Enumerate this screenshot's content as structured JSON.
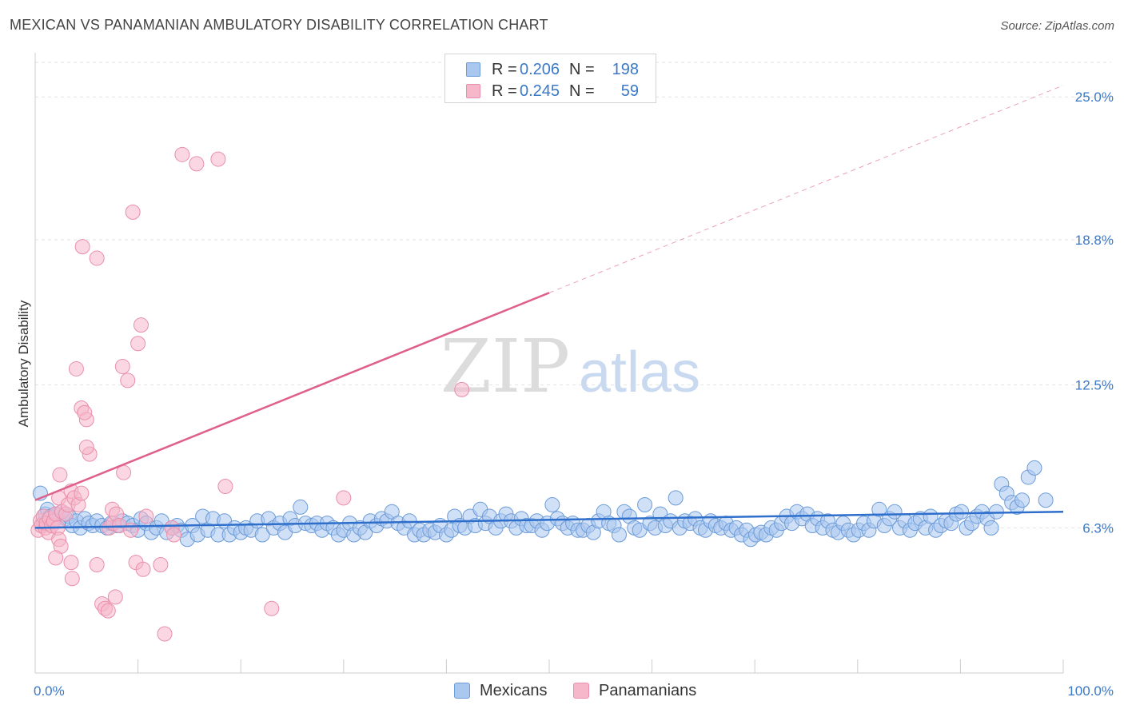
{
  "header": {
    "title": "MEXICAN VS PANAMANIAN AMBULATORY DISABILITY CORRELATION CHART",
    "source": "Source: ZipAtlas.com"
  },
  "watermark": {
    "part1": "ZIP",
    "part2": "atlas"
  },
  "legend": {
    "rows": [
      {
        "r_label": "R =",
        "r_value": "0.206",
        "n_label": "N =",
        "n_value": "198"
      },
      {
        "r_label": "R =",
        "r_value": "0.245",
        "n_label": "N =",
        "n_value": "59"
      }
    ]
  },
  "bottom_legend": {
    "mexicans": "Mexicans",
    "panamanians": "Panamanians"
  },
  "colors": {
    "mexican_fill": "#a9c7ef",
    "mexican_stroke": "#6b9bd8",
    "mexican_line": "#2f6fcc",
    "panamanian_fill": "#f6b7ca",
    "panamanian_stroke": "#e98fab",
    "panamanian_line": "#e0608c",
    "tick_label": "#3a78c8",
    "grid": "#e2e2e2"
  },
  "chart_data": {
    "type": "scatter",
    "title": "MEXICAN VS PANAMANIAN AMBULATORY DISABILITY CORRELATION CHART",
    "xlabel": "",
    "ylabel": "Ambulatory Disability",
    "xlim": [
      0,
      100
    ],
    "ylim": [
      0,
      26.5
    ],
    "x_tick_labels": [
      {
        "value": 0,
        "label": "0.0%"
      },
      {
        "value": 100,
        "label": "100.0%"
      }
    ],
    "x_minor_ticks": [
      0,
      10,
      20,
      30,
      40,
      50,
      60,
      70,
      80,
      90,
      100
    ],
    "y_ticks": [
      {
        "value": 6.3,
        "label": "6.3%"
      },
      {
        "value": 12.5,
        "label": "12.5%"
      },
      {
        "value": 18.8,
        "label": "18.8%"
      },
      {
        "value": 25.0,
        "label": "25.0%"
      }
    ],
    "grid": true,
    "legend_position": "top-center",
    "series": [
      {
        "name": "Mexicans",
        "R": 0.206,
        "N": 198,
        "trend": {
          "x": [
            0,
            100
          ],
          "y": [
            6.3,
            7.0
          ]
        },
        "points": [
          [
            0.5,
            7.8
          ],
          [
            0.8,
            6.5
          ],
          [
            1.0,
            6.9
          ],
          [
            1.2,
            7.1
          ],
          [
            1.5,
            6.8
          ],
          [
            1.8,
            6.6
          ],
          [
            2.0,
            6.9
          ],
          [
            2.3,
            6.6
          ],
          [
            2.6,
            7.0
          ],
          [
            3.0,
            6.7
          ],
          [
            3.3,
            6.8
          ],
          [
            3.6,
            6.4
          ],
          [
            4.0,
            6.6
          ],
          [
            4.4,
            6.3
          ],
          [
            4.8,
            6.7
          ],
          [
            5.2,
            6.5
          ],
          [
            5.6,
            6.4
          ],
          [
            6.0,
            6.6
          ],
          [
            6.5,
            6.4
          ],
          [
            7.0,
            6.3
          ],
          [
            7.4,
            6.5
          ],
          [
            8.0,
            6.4
          ],
          [
            8.5,
            6.6
          ],
          [
            9.0,
            6.5
          ],
          [
            9.5,
            6.4
          ],
          [
            10.0,
            6.2
          ],
          [
            10.3,
            6.7
          ],
          [
            10.8,
            6.5
          ],
          [
            11.3,
            6.1
          ],
          [
            11.8,
            6.3
          ],
          [
            12.3,
            6.6
          ],
          [
            12.8,
            6.1
          ],
          [
            13.3,
            6.3
          ],
          [
            13.8,
            6.4
          ],
          [
            14.2,
            6.2
          ],
          [
            14.8,
            5.8
          ],
          [
            15.3,
            6.4
          ],
          [
            15.8,
            6.0
          ],
          [
            16.3,
            6.8
          ],
          [
            16.8,
            6.2
          ],
          [
            17.3,
            6.7
          ],
          [
            17.8,
            6.0
          ],
          [
            18.4,
            6.6
          ],
          [
            18.9,
            6.0
          ],
          [
            19.4,
            6.3
          ],
          [
            20.0,
            6.1
          ],
          [
            20.5,
            6.3
          ],
          [
            21.0,
            6.2
          ],
          [
            21.6,
            6.6
          ],
          [
            22.1,
            6.0
          ],
          [
            22.7,
            6.7
          ],
          [
            23.2,
            6.3
          ],
          [
            23.8,
            6.5
          ],
          [
            24.3,
            6.1
          ],
          [
            24.8,
            6.7
          ],
          [
            25.3,
            6.4
          ],
          [
            25.8,
            7.2
          ],
          [
            26.3,
            6.5
          ],
          [
            26.9,
            6.4
          ],
          [
            27.4,
            6.5
          ],
          [
            27.9,
            6.2
          ],
          [
            28.4,
            6.5
          ],
          [
            29.0,
            6.3
          ],
          [
            29.5,
            6.0
          ],
          [
            30.0,
            6.2
          ],
          [
            30.6,
            6.5
          ],
          [
            31.0,
            6.0
          ],
          [
            31.6,
            6.3
          ],
          [
            32.1,
            6.1
          ],
          [
            32.6,
            6.6
          ],
          [
            33.2,
            6.4
          ],
          [
            33.7,
            6.7
          ],
          [
            34.2,
            6.6
          ],
          [
            34.7,
            7.0
          ],
          [
            35.3,
            6.5
          ],
          [
            35.9,
            6.3
          ],
          [
            36.4,
            6.6
          ],
          [
            36.9,
            6.0
          ],
          [
            37.4,
            6.2
          ],
          [
            37.8,
            6.0
          ],
          [
            38.4,
            6.2
          ],
          [
            38.9,
            6.1
          ],
          [
            39.4,
            6.4
          ],
          [
            40.0,
            6.0
          ],
          [
            40.5,
            6.2
          ],
          [
            40.8,
            6.8
          ],
          [
            41.3,
            6.4
          ],
          [
            41.8,
            6.3
          ],
          [
            42.3,
            6.8
          ],
          [
            42.8,
            6.4
          ],
          [
            43.3,
            7.1
          ],
          [
            43.8,
            6.5
          ],
          [
            44.2,
            6.8
          ],
          [
            44.8,
            6.3
          ],
          [
            45.3,
            6.6
          ],
          [
            45.8,
            6.9
          ],
          [
            46.3,
            6.6
          ],
          [
            46.8,
            6.3
          ],
          [
            47.3,
            6.7
          ],
          [
            47.8,
            6.4
          ],
          [
            48.3,
            6.4
          ],
          [
            48.8,
            6.6
          ],
          [
            49.3,
            6.2
          ],
          [
            49.8,
            6.5
          ],
          [
            50.3,
            7.3
          ],
          [
            50.8,
            6.7
          ],
          [
            51.3,
            6.5
          ],
          [
            51.8,
            6.3
          ],
          [
            52.3,
            6.5
          ],
          [
            52.8,
            6.2
          ],
          [
            53.3,
            6.2
          ],
          [
            53.8,
            6.4
          ],
          [
            54.3,
            6.1
          ],
          [
            54.8,
            6.6
          ],
          [
            55.3,
            7.0
          ],
          [
            55.8,
            6.5
          ],
          [
            56.3,
            6.4
          ],
          [
            56.8,
            6.0
          ],
          [
            57.3,
            7.0
          ],
          [
            57.8,
            6.8
          ],
          [
            58.3,
            6.3
          ],
          [
            58.8,
            6.2
          ],
          [
            59.3,
            7.3
          ],
          [
            59.8,
            6.5
          ],
          [
            60.3,
            6.3
          ],
          [
            60.8,
            6.9
          ],
          [
            61.3,
            6.4
          ],
          [
            61.8,
            6.6
          ],
          [
            62.3,
            7.6
          ],
          [
            62.7,
            6.3
          ],
          [
            63.2,
            6.6
          ],
          [
            63.7,
            6.5
          ],
          [
            64.2,
            6.7
          ],
          [
            64.7,
            6.3
          ],
          [
            65.2,
            6.2
          ],
          [
            65.7,
            6.6
          ],
          [
            66.2,
            6.4
          ],
          [
            66.7,
            6.3
          ],
          [
            67.2,
            6.5
          ],
          [
            67.7,
            6.2
          ],
          [
            68.2,
            6.3
          ],
          [
            68.7,
            6.0
          ],
          [
            69.2,
            6.2
          ],
          [
            69.6,
            5.8
          ],
          [
            70.1,
            6.0
          ],
          [
            70.6,
            6.1
          ],
          [
            71.1,
            6.0
          ],
          [
            71.6,
            6.3
          ],
          [
            72.1,
            6.2
          ],
          [
            72.6,
            6.5
          ],
          [
            73.1,
            6.8
          ],
          [
            73.6,
            6.5
          ],
          [
            74.1,
            7.0
          ],
          [
            74.6,
            6.7
          ],
          [
            75.1,
            6.9
          ],
          [
            75.6,
            6.4
          ],
          [
            76.1,
            6.7
          ],
          [
            76.6,
            6.3
          ],
          [
            77.1,
            6.6
          ],
          [
            77.6,
            6.2
          ],
          [
            78.1,
            6.1
          ],
          [
            78.6,
            6.5
          ],
          [
            79.1,
            6.2
          ],
          [
            79.6,
            6.0
          ],
          [
            80.1,
            6.2
          ],
          [
            80.6,
            6.5
          ],
          [
            81.1,
            6.2
          ],
          [
            81.6,
            6.6
          ],
          [
            82.1,
            7.1
          ],
          [
            82.6,
            6.4
          ],
          [
            83.1,
            6.7
          ],
          [
            83.6,
            7.0
          ],
          [
            84.1,
            6.3
          ],
          [
            84.6,
            6.6
          ],
          [
            85.1,
            6.2
          ],
          [
            85.6,
            6.5
          ],
          [
            86.1,
            6.7
          ],
          [
            86.6,
            6.3
          ],
          [
            87.1,
            6.8
          ],
          [
            87.6,
            6.2
          ],
          [
            88.1,
            6.4
          ],
          [
            88.6,
            6.6
          ],
          [
            89.1,
            6.5
          ],
          [
            89.6,
            6.9
          ],
          [
            90.1,
            7.0
          ],
          [
            90.6,
            6.3
          ],
          [
            91.1,
            6.5
          ],
          [
            91.6,
            6.8
          ],
          [
            92.1,
            7.0
          ],
          [
            92.6,
            6.7
          ],
          [
            93.0,
            6.3
          ],
          [
            93.5,
            7.0
          ],
          [
            94.0,
            8.2
          ],
          [
            94.5,
            7.8
          ],
          [
            95.0,
            7.4
          ],
          [
            95.5,
            7.2
          ],
          [
            96.0,
            7.5
          ],
          [
            96.6,
            8.5
          ],
          [
            97.2,
            8.9
          ],
          [
            98.3,
            7.5
          ]
        ]
      },
      {
        "name": "Panamanians",
        "R": 0.245,
        "N": 59,
        "trend": {
          "x": [
            0,
            50
          ],
          "y": [
            7.5,
            16.5
          ],
          "extension": {
            "x": [
              50,
              100
            ],
            "y": [
              16.5,
              25.5
            ]
          }
        },
        "points": [
          [
            0.3,
            6.2
          ],
          [
            0.5,
            6.6
          ],
          [
            0.6,
            6.4
          ],
          [
            0.8,
            6.8
          ],
          [
            1.0,
            6.3
          ],
          [
            1.1,
            6.5
          ],
          [
            1.3,
            6.1
          ],
          [
            1.4,
            6.7
          ],
          [
            1.6,
            6.4
          ],
          [
            1.8,
            6.6
          ],
          [
            2.0,
            6.9
          ],
          [
            2.2,
            6.3
          ],
          [
            2.3,
            5.8
          ],
          [
            2.5,
            5.5
          ],
          [
            2.0,
            5.0
          ],
          [
            2.3,
            7.6
          ],
          [
            2.4,
            8.6
          ],
          [
            2.6,
            7.0
          ],
          [
            3.0,
            6.9
          ],
          [
            3.2,
            7.3
          ],
          [
            3.5,
            7.9
          ],
          [
            3.8,
            7.6
          ],
          [
            4.2,
            7.3
          ],
          [
            4.5,
            7.8
          ],
          [
            3.5,
            4.8
          ],
          [
            3.6,
            4.1
          ],
          [
            4.0,
            13.2
          ],
          [
            4.5,
            11.5
          ],
          [
            5.0,
            11.0
          ],
          [
            4.8,
            11.3
          ],
          [
            5.3,
            9.5
          ],
          [
            5.0,
            9.8
          ],
          [
            4.6,
            18.5
          ],
          [
            6.0,
            18.0
          ],
          [
            6.5,
            3.0
          ],
          [
            6.8,
            2.8
          ],
          [
            7.1,
            2.7
          ],
          [
            7.2,
            6.3
          ],
          [
            7.5,
            7.1
          ],
          [
            7.8,
            3.3
          ],
          [
            7.6,
            6.5
          ],
          [
            7.9,
            6.9
          ],
          [
            8.2,
            6.4
          ],
          [
            8.5,
            13.3
          ],
          [
            8.6,
            8.7
          ],
          [
            9.0,
            12.7
          ],
          [
            9.3,
            6.2
          ],
          [
            10.0,
            14.3
          ],
          [
            10.3,
            15.1
          ],
          [
            10.8,
            6.8
          ],
          [
            9.8,
            4.8
          ],
          [
            10.5,
            4.5
          ],
          [
            12.2,
            4.7
          ],
          [
            12.6,
            1.7
          ],
          [
            13.3,
            6.3
          ],
          [
            13.5,
            6.0
          ],
          [
            14.3,
            22.5
          ],
          [
            15.7,
            22.1
          ],
          [
            18.5,
            8.1
          ],
          [
            9.5,
            20.0
          ],
          [
            17.8,
            22.3
          ],
          [
            23.0,
            2.8
          ],
          [
            30.0,
            7.6
          ],
          [
            41.5,
            12.3
          ],
          [
            6.0,
            4.7
          ]
        ]
      }
    ]
  }
}
